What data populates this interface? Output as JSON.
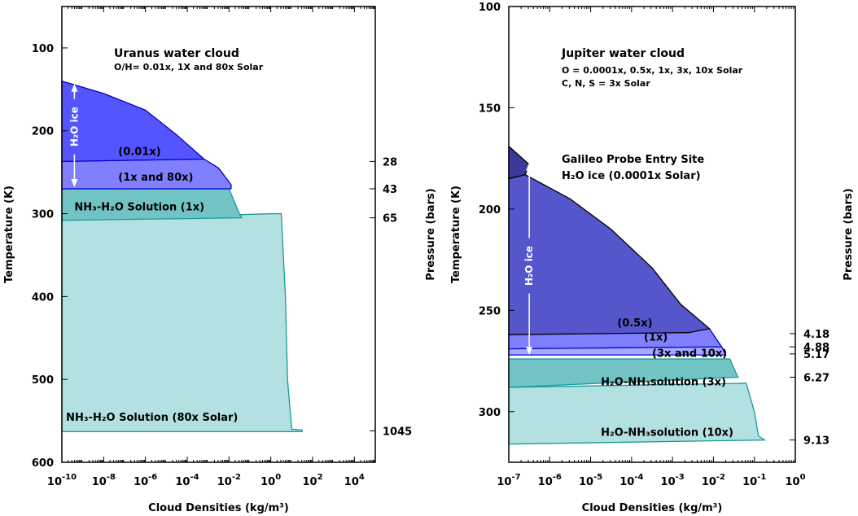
{
  "chart_data": [
    {
      "type": "area",
      "xscale": "log",
      "yaxis": "inverted",
      "xlabel": "Cloud Densities (kg/m³)",
      "ylabel_left": "Temperature (K)",
      "ylabel_right": "Pressure (bars)",
      "xlim_log10": [
        -10,
        5
      ],
      "ylim": [
        600,
        50
      ],
      "xtick_exponents": [
        -10,
        -8,
        -6,
        -4,
        -2,
        0,
        2,
        4
      ],
      "ytick_values": [
        100,
        200,
        300,
        400,
        500,
        600
      ],
      "ytick_labels": [
        "100",
        "200",
        "300",
        "400",
        "500",
        "600"
      ],
      "pressure_ticks": [
        {
          "temperature": 237,
          "label": "28"
        },
        {
          "temperature": 270,
          "label": "43"
        },
        {
          "temperature": 305,
          "label": "65"
        },
        {
          "temperature": 562,
          "label": "1045"
        }
      ],
      "title": "Uranus water cloud",
      "subtitle": "O/H= 0.01x, 1X and 80x Solar",
      "regions": [
        {
          "label": "NH₃-H₂O Solution (80x Solar)",
          "label_at": [
            -9.8,
            550
          ],
          "color": "#b3e0e0",
          "edge": "#1a9a9a",
          "points": [
            [
              -10,
              308
            ],
            [
              0,
              300
            ],
            [
              0.5,
              300
            ],
            [
              0.7,
              400
            ],
            [
              0.8,
              500
            ],
            [
              1,
              560
            ],
            [
              1.5,
              561
            ],
            [
              1.5,
              563
            ],
            [
              -10,
              563
            ]
          ]
        },
        {
          "label": "NH₃-H₂O Solution (1x)",
          "label_at": [
            -9.4,
            296
          ],
          "color": "#72c4c4",
          "edge": "#1a9a9a",
          "points": [
            [
              -10,
              270
            ],
            [
              -2,
              270
            ],
            [
              -1.5,
              300
            ],
            [
              -1.4,
              305
            ],
            [
              -10,
              308
            ]
          ]
        },
        {
          "label": "(1x and 80x)",
          "label_at": [
            -7.3,
            260
          ],
          "color": "#8080ff",
          "edge": "#0000cc",
          "points": [
            [
              -10,
              237
            ],
            [
              -3.2,
              234
            ],
            [
              -2.5,
              245
            ],
            [
              -1.9,
              265
            ],
            [
              -1.9,
              270
            ],
            [
              -10,
              270
            ]
          ]
        },
        {
          "label": "(0.01x)",
          "label_at": [
            -7.3,
            229
          ],
          "color": "#5555ff",
          "edge": "#0000cc",
          "points": [
            [
              -10,
              140
            ],
            [
              -8,
              155
            ],
            [
              -6,
              175
            ],
            [
              -4.5,
              205
            ],
            [
              -3.2,
              234
            ],
            [
              -10,
              237
            ]
          ]
        }
      ],
      "ice_arrow": {
        "label": "H₂O ice",
        "x": -9.4,
        "top": 143,
        "bottom": 268,
        "label_y": 195
      }
    },
    {
      "type": "area",
      "xscale": "log",
      "yaxis": "inverted",
      "xlabel": "Cloud Densities (kg/m³)",
      "ylabel_left": "Temperature (K)",
      "ylabel_right": "Pressure (bars)",
      "xlim_log10": [
        -7,
        0
      ],
      "ylim": [
        325,
        100
      ],
      "xtick_exponents": [
        -7,
        -6,
        -5,
        -4,
        -3,
        -2,
        -1,
        0
      ],
      "ytick_values": [
        100,
        150,
        200,
        250,
        300
      ],
      "ytick_labels": [
        "100",
        "150",
        "200",
        "250",
        "300"
      ],
      "pressure_ticks": [
        {
          "temperature": 261.5,
          "label": "4.18"
        },
        {
          "temperature": 268,
          "label": "4.88"
        },
        {
          "temperature": 271.5,
          "label": "5.17"
        },
        {
          "temperature": 283,
          "label": "6.27"
        },
        {
          "temperature": 314,
          "label": "9.13"
        }
      ],
      "title": "Jupiter water cloud",
      "subtitle": "O = 0.0001x, 0.5x, 1x, 3x, 10x Solar",
      "subtitle2": "C, N, S = 3x Solar",
      "annotation": "Galileo Probe Entry Site",
      "annotation2": "H₂O ice (0.0001x Solar)",
      "regions": [
        {
          "label": "H₂O-NH₃solution (10x)",
          "label_at": [
            -4.75,
            312
          ],
          "color": "#b3e0e0",
          "edge": "#1a9a9a",
          "points": [
            [
              -7,
              288
            ],
            [
              -1.2,
              286
            ],
            [
              -1.0,
              300
            ],
            [
              -0.9,
              312
            ],
            [
              -0.75,
              314
            ],
            [
              -7,
              316
            ]
          ]
        },
        {
          "label": "H₂O-NH₃solution (3x)",
          "label_at": [
            -4.75,
            287
          ],
          "color": "#72c4c4",
          "edge": "#1a9a9a",
          "points": [
            [
              -7,
              274
            ],
            [
              -1.6,
              274
            ],
            [
              -1.4,
              283
            ],
            [
              -7,
              288
            ]
          ]
        },
        {
          "label": "(3x and 10x)",
          "label_at": [
            -3.5,
            273
          ],
          "color": "#a8a8ff",
          "edge": "#0000cc",
          "points": [
            [
              -7,
              268
            ],
            [
              -1.8,
              268
            ],
            [
              -1.7,
              272
            ],
            [
              -7,
              272
            ]
          ]
        },
        {
          "label": "(1x)",
          "label_at": [
            -3.7,
            265
          ],
          "color": "#8080ff",
          "edge": "#0000cc",
          "points": [
            [
              -7,
              262
            ],
            [
              -2.1,
              259
            ],
            [
              -1.8,
              268
            ],
            [
              -7,
              269
            ]
          ]
        },
        {
          "label": "(0.5x)",
          "label_at": [
            -4.35,
            258
          ],
          "color": "#5555cc",
          "edge": "#000000",
          "points": [
            [
              -7,
              185
            ],
            [
              -6.6,
              183
            ],
            [
              -5.5,
              195
            ],
            [
              -4.5,
              210
            ],
            [
              -3.5,
              229
            ],
            [
              -2.8,
              247
            ],
            [
              -2.1,
              259
            ],
            [
              -2.6,
              261
            ],
            [
              -7,
              262
            ]
          ]
        },
        {
          "label": "",
          "label_at": null,
          "color": "#3a3a9a",
          "edge": "#000000",
          "points": [
            [
              -7,
              169
            ],
            [
              -6.5,
              178
            ],
            [
              -6.6,
              183
            ],
            [
              -7,
              185
            ]
          ]
        }
      ],
      "ice_arrow": {
        "label": "H₂O ice",
        "x": -6.5,
        "top": 177,
        "bottom": 272,
        "label_y": 228
      }
    }
  ]
}
